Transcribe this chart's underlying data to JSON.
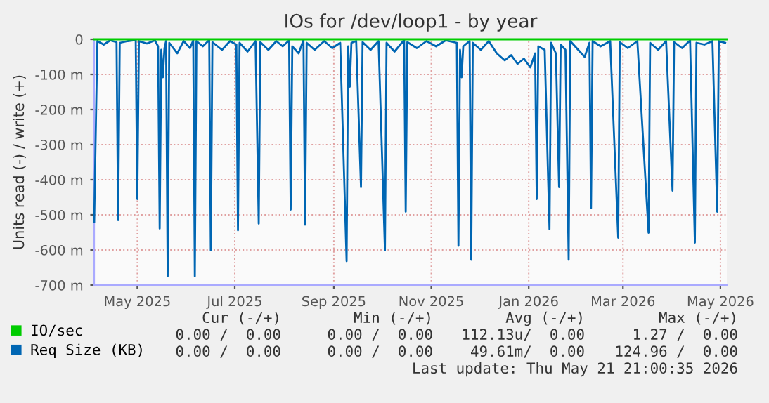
{
  "chart_data": {
    "type": "line",
    "title": "IOs for /dev/loop1 - by year",
    "ylabel": "Units read (-) / write (+)",
    "xlim": [
      "2025-04-04",
      "2026-05-05"
    ],
    "xticks": [
      {
        "value": "2025-05-01",
        "label": "May 2025"
      },
      {
        "value": "2025-07-01",
        "label": "Jul 2025"
      },
      {
        "value": "2025-09-01",
        "label": "Sep 2025"
      },
      {
        "value": "2025-11-01",
        "label": "Nov 2025"
      },
      {
        "value": "2026-01-01",
        "label": "Jan 2026"
      },
      {
        "value": "2026-03-01",
        "label": "Mar 2026"
      },
      {
        "value": "2026-05-01",
        "label": "May 2026"
      }
    ],
    "ylim": [
      -700,
      0
    ],
    "yticks": [
      {
        "value": -700,
        "label": "-700 m"
      },
      {
        "value": -600,
        "label": "-600 m"
      },
      {
        "value": -500,
        "label": "-500 m"
      },
      {
        "value": -400,
        "label": "-400 m"
      },
      {
        "value": -300,
        "label": "-300 m"
      },
      {
        "value": -200,
        "label": "-200 m"
      },
      {
        "value": -100,
        "label": "-100 m"
      },
      0
    ],
    "grid": true,
    "legend": "bottom",
    "series": [
      {
        "name": "IO/sec",
        "color": "#00cc00",
        "x": [
          "2025-04-04",
          "2026-05-05"
        ],
        "values": [
          0,
          0
        ]
      },
      {
        "name": "Req Size (KB)",
        "color": "#0066b3",
        "x": [
          "2025-04-04",
          "2025-04-06",
          "2025-04-10",
          "2025-04-14",
          "2025-04-18",
          "2025-04-19",
          "2025-04-20",
          "2025-04-25",
          "2025-04-30",
          "2025-05-01",
          "2025-05-02",
          "2025-05-07",
          "2025-05-12",
          "2025-05-14",
          "2025-05-15",
          "2025-05-16",
          "2025-05-17",
          "2025-05-18",
          "2025-05-19",
          "2025-05-20",
          "2025-05-21",
          "2025-05-26",
          "2025-05-30",
          "2025-06-03",
          "2025-06-05",
          "2025-06-06",
          "2025-06-07",
          "2025-06-11",
          "2025-06-15",
          "2025-06-16",
          "2025-06-17",
          "2025-06-23",
          "2025-06-28",
          "2025-07-02",
          "2025-07-03",
          "2025-07-04",
          "2025-07-09",
          "2025-07-14",
          "2025-07-16",
          "2025-07-17",
          "2025-07-22",
          "2025-07-27",
          "2025-07-31",
          "2025-08-04",
          "2025-08-05",
          "2025-08-06",
          "2025-08-10",
          "2025-08-13",
          "2025-08-14",
          "2025-08-15",
          "2025-08-20",
          "2025-08-26",
          "2025-08-31",
          "2025-09-05",
          "2025-09-09",
          "2025-09-10",
          "2025-09-11",
          "2025-09-12",
          "2025-09-15",
          "2025-09-18",
          "2025-09-19",
          "2025-09-24",
          "2025-09-29",
          "2025-10-03",
          "2025-10-04",
          "2025-10-09",
          "2025-10-15",
          "2025-10-16",
          "2025-10-17",
          "2025-10-23",
          "2025-10-29",
          "2025-11-04",
          "2025-11-10",
          "2025-11-17",
          "2025-11-18",
          "2025-11-19",
          "2025-11-20",
          "2025-11-21",
          "2025-11-25",
          "2025-11-26",
          "2025-11-27",
          "2025-12-02",
          "2025-12-07",
          "2025-12-12",
          "2025-12-17",
          "2025-12-21",
          "2025-12-25",
          "2025-12-29",
          "2026-01-02",
          "2026-01-05",
          "2026-01-06",
          "2026-01-07",
          "2026-01-11",
          "2026-01-14",
          "2026-01-15",
          "2026-01-18",
          "2026-01-20",
          "2026-01-21",
          "2026-01-24",
          "2026-01-26",
          "2026-01-27",
          "2026-02-01",
          "2026-02-05",
          "2026-02-08",
          "2026-02-09",
          "2026-02-10",
          "2026-02-15",
          "2026-02-21",
          "2026-02-26",
          "2026-02-27",
          "2026-03-04",
          "2026-03-10",
          "2026-03-17",
          "2026-03-18",
          "2026-03-23",
          "2026-03-28",
          "2026-04-01",
          "2026-04-02",
          "2026-04-07",
          "2026-04-12",
          "2026-04-15",
          "2026-04-16",
          "2026-04-21",
          "2026-04-26",
          "2026-04-29",
          "2026-04-30",
          "2026-05-04"
        ],
        "values": [
          -521,
          -5,
          -15,
          -3,
          -8,
          -515,
          -10,
          -5,
          -2,
          -455,
          -5,
          -12,
          -3,
          -20,
          -539,
          -30,
          -108,
          -25,
          -5,
          -675,
          -10,
          -40,
          -5,
          -25,
          -3,
          -675,
          -5,
          -20,
          -2,
          -601,
          -8,
          -30,
          -5,
          -15,
          -544,
          -10,
          -35,
          -5,
          -525,
          -8,
          -30,
          -5,
          -20,
          -3,
          -485,
          -20,
          -40,
          -2,
          -528,
          -10,
          -30,
          -5,
          -25,
          -10,
          -632,
          -20,
          -135,
          -10,
          -5,
          -421,
          -8,
          -30,
          -5,
          -601,
          -10,
          -35,
          -2,
          -491,
          -8,
          -25,
          -5,
          -20,
          -3,
          -10,
          -588,
          -30,
          -108,
          -20,
          -5,
          -628,
          -10,
          -30,
          -5,
          -40,
          -60,
          -45,
          -70,
          -55,
          -80,
          -40,
          -455,
          -20,
          -30,
          -541,
          -10,
          -40,
          -421,
          -15,
          -30,
          -628,
          -5,
          -30,
          -50,
          -10,
          -481,
          -5,
          -20,
          -5,
          -565,
          -8,
          -25,
          -5,
          -551,
          -10,
          -30,
          -5,
          -431,
          -8,
          -25,
          -3,
          -579,
          -10,
          -15,
          -5,
          -491,
          -5,
          -10
        ]
      }
    ],
    "annotations": [
      "Cur (-/+)",
      "Min (-/+)",
      "Avg (-/+)",
      "Max (-/+)",
      "0.00 /  0.00",
      "0.00 /  0.00",
      "112.13u/  0.00",
      "1.27 /  0.00",
      "0.00 /  0.00",
      "0.00 /  0.00",
      "49.61m/  0.00",
      "124.96 /  0.00",
      "Last update: Thu May 21 21:00:35 2026"
    ]
  }
}
